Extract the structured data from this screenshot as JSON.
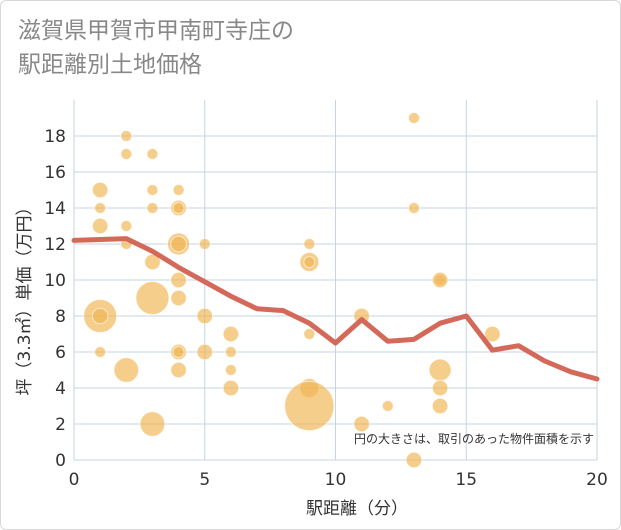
{
  "chart_data": {
    "type": "scatter",
    "title_lines": [
      "滋賀県甲賀市甲南町寺庄の",
      "駅距離別土地価格"
    ],
    "xlabel": "駅距離（分）",
    "ylabel": "坪（3.3㎡）単価（万円）",
    "xlim": [
      0,
      20
    ],
    "ylim": [
      0,
      20
    ],
    "xticks": [
      0,
      5,
      10,
      15,
      20
    ],
    "yticks": [
      0,
      2,
      4,
      6,
      8,
      10,
      12,
      14,
      16,
      18
    ],
    "note": "円の大きさは、取引のあった物件面積を示す",
    "colors": {
      "bubble": "#f0b44e",
      "line": "#d4695a",
      "grid": "#c5d3e3"
    },
    "bubbles": [
      {
        "x": 1,
        "y": 15,
        "s": 2
      },
      {
        "x": 1,
        "y": 14,
        "s": 1
      },
      {
        "x": 1,
        "y": 13,
        "s": 2
      },
      {
        "x": 1,
        "y": 8,
        "s": 9
      },
      {
        "x": 1,
        "y": 8,
        "s": 2
      },
      {
        "x": 1,
        "y": 6,
        "s": 1
      },
      {
        "x": 2,
        "y": 18,
        "s": 1
      },
      {
        "x": 2,
        "y": 17,
        "s": 1
      },
      {
        "x": 2,
        "y": 13,
        "s": 1
      },
      {
        "x": 2,
        "y": 12,
        "s": 1
      },
      {
        "x": 2,
        "y": 5,
        "s": 5
      },
      {
        "x": 3,
        "y": 17,
        "s": 1
      },
      {
        "x": 3,
        "y": 15,
        "s": 1
      },
      {
        "x": 3,
        "y": 14,
        "s": 1
      },
      {
        "x": 3,
        "y": 11,
        "s": 2
      },
      {
        "x": 3,
        "y": 9,
        "s": 9
      },
      {
        "x": 3,
        "y": 2,
        "s": 5
      },
      {
        "x": 4,
        "y": 15,
        "s": 1
      },
      {
        "x": 4,
        "y": 14,
        "s": 2
      },
      {
        "x": 4,
        "y": 14,
        "s": 1
      },
      {
        "x": 4,
        "y": 12,
        "s": 4
      },
      {
        "x": 4,
        "y": 12,
        "s": 2
      },
      {
        "x": 4,
        "y": 10,
        "s": 2
      },
      {
        "x": 4,
        "y": 9,
        "s": 2
      },
      {
        "x": 4,
        "y": 6,
        "s": 2
      },
      {
        "x": 4,
        "y": 6,
        "s": 1
      },
      {
        "x": 4,
        "y": 5,
        "s": 2
      },
      {
        "x": 5,
        "y": 12,
        "s": 1
      },
      {
        "x": 5,
        "y": 8,
        "s": 2
      },
      {
        "x": 5,
        "y": 6,
        "s": 2
      },
      {
        "x": 6,
        "y": 7,
        "s": 2
      },
      {
        "x": 6,
        "y": 6,
        "s": 1
      },
      {
        "x": 6,
        "y": 5,
        "s": 1
      },
      {
        "x": 6,
        "y": 4,
        "s": 2
      },
      {
        "x": 9,
        "y": 12,
        "s": 1
      },
      {
        "x": 9,
        "y": 11,
        "s": 3
      },
      {
        "x": 9,
        "y": 11,
        "s": 1
      },
      {
        "x": 9,
        "y": 7,
        "s": 1
      },
      {
        "x": 9,
        "y": 4,
        "s": 3
      },
      {
        "x": 9,
        "y": 3,
        "s": 20
      },
      {
        "x": 11,
        "y": 8,
        "s": 2
      },
      {
        "x": 11,
        "y": 2,
        "s": 2
      },
      {
        "x": 12,
        "y": 3,
        "s": 1
      },
      {
        "x": 13,
        "y": 19,
        "s": 1
      },
      {
        "x": 13,
        "y": 14,
        "s": 1
      },
      {
        "x": 13,
        "y": 0,
        "s": 2
      },
      {
        "x": 14,
        "y": 10,
        "s": 1
      },
      {
        "x": 14,
        "y": 10,
        "s": 2
      },
      {
        "x": 14,
        "y": 5,
        "s": 4
      },
      {
        "x": 14,
        "y": 4,
        "s": 2
      },
      {
        "x": 14,
        "y": 3,
        "s": 2
      },
      {
        "x": 16,
        "y": 7,
        "s": 2
      }
    ],
    "line": [
      {
        "x": 0,
        "y": 12.2
      },
      {
        "x": 1,
        "y": 12.25
      },
      {
        "x": 2,
        "y": 12.3
      },
      {
        "x": 3,
        "y": 11.6
      },
      {
        "x": 4,
        "y": 10.7
      },
      {
        "x": 5,
        "y": 9.9
      },
      {
        "x": 6,
        "y": 9.1
      },
      {
        "x": 7,
        "y": 8.4
      },
      {
        "x": 8,
        "y": 8.3
      },
      {
        "x": 9,
        "y": 7.6
      },
      {
        "x": 10,
        "y": 6.5
      },
      {
        "x": 11,
        "y": 7.8
      },
      {
        "x": 12,
        "y": 6.6
      },
      {
        "x": 13,
        "y": 6.7
      },
      {
        "x": 14,
        "y": 7.6
      },
      {
        "x": 15,
        "y": 8.0
      },
      {
        "x": 16,
        "y": 6.1
      },
      {
        "x": 17,
        "y": 6.35
      },
      {
        "x": 18,
        "y": 5.5
      },
      {
        "x": 19,
        "y": 4.9
      },
      {
        "x": 20,
        "y": 4.5
      }
    ]
  }
}
